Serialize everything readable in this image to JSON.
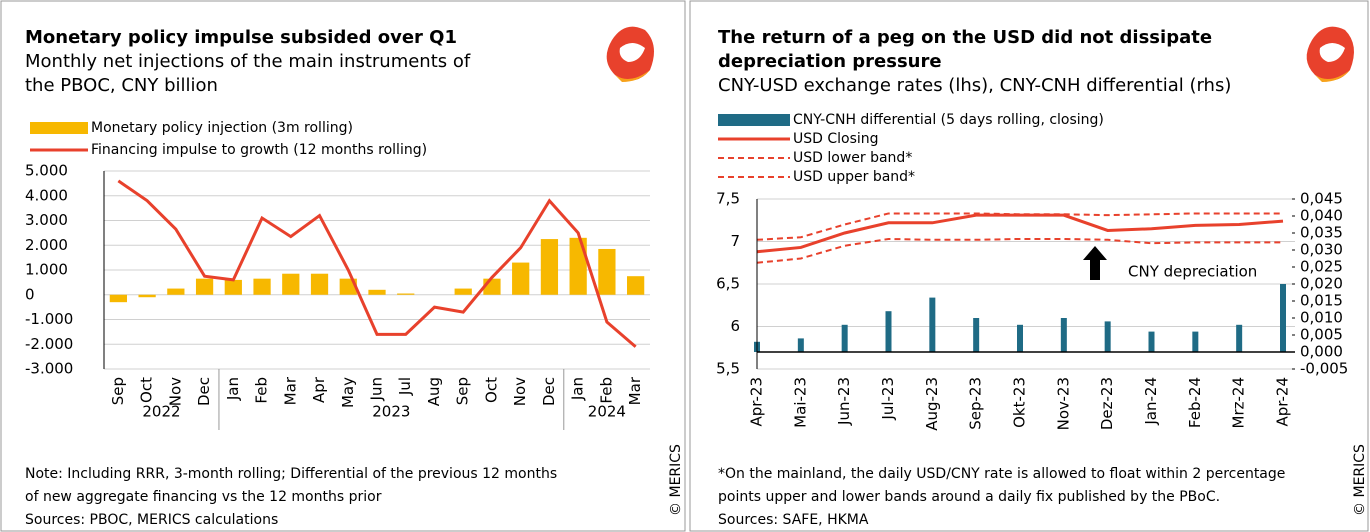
{
  "chart_data": [
    {
      "type": "bar",
      "title": "Monetary policy impulse subsided over Q1",
      "subtitle": [
        "Monthly net injections of the main instruments of",
        "the PBOC, CNY billion"
      ],
      "groups": [
        {
          "label": "2022",
          "categories": [
            "Sep",
            "Oct",
            "Nov",
            "Dec"
          ]
        },
        {
          "label": "2023",
          "categories": [
            "Jan",
            "Feb",
            "Mar",
            "Apr",
            "May",
            "Jun",
            "Jul",
            "Aug",
            "Sep",
            "Oct",
            "Nov",
            "Dec"
          ]
        },
        {
          "label": "2024",
          "categories": [
            "Jan",
            "Feb",
            "Mar"
          ]
        }
      ],
      "series": [
        {
          "name": "Monetary policy injection (3m rolling)",
          "type": "bar",
          "color": "#f7b800",
          "values": [
            -300,
            -100,
            250,
            650,
            600,
            650,
            850,
            850,
            650,
            200,
            50,
            0,
            250,
            650,
            1300,
            2250,
            2300,
            1850,
            750
          ]
        },
        {
          "name": "Financing impulse to growth (12 months rolling)",
          "type": "line",
          "color": "#e8412c",
          "values": [
            4600,
            3800,
            2650,
            750,
            600,
            3100,
            2350,
            3200,
            1000,
            -1600,
            -1600,
            -500,
            -700,
            700,
            1900,
            3800,
            2500,
            -1100,
            -2100
          ]
        }
      ],
      "ylim": [
        -3000,
        5000
      ],
      "yticks": [
        {
          "value": 5000,
          "label": "5.000"
        },
        {
          "value": 4000,
          "label": "4.000"
        },
        {
          "value": 3000,
          "label": "3.000"
        },
        {
          "value": 2000,
          "label": "2.000"
        },
        {
          "value": 1000,
          "label": "1.000"
        },
        0,
        {
          "value": -1000,
          "label": "-1.000"
        },
        {
          "value": -2000,
          "label": "-2.000"
        },
        {
          "value": -3000,
          "label": "-3.000"
        }
      ],
      "grid": true,
      "notes": [
        "Note: Including RRR, 3-month rolling; Differential of the previous 12 months",
        "of new aggregate financing vs the 12 months prior",
        "Sources: PBOC, MERICS calculations"
      ],
      "credit": "© MERICS"
    },
    {
      "type": "line",
      "title": [
        "The return of a peg on the USD did not dissipate",
        "depreciation pressure"
      ],
      "subtitle": "CNY-USD exchange rates (lhs), CNY-CNH differential (rhs)",
      "categories": [
        "Apr-23",
        "Mai-23",
        "Jun-23",
        "Jul-23",
        "Aug-23",
        "Sep-23",
        "Okt-23",
        "Nov-23",
        "Dez-23",
        "Jan-24",
        "Feb-24",
        "Mrz-24",
        "Apr-24"
      ],
      "series": [
        {
          "name": "CNY-CNH differential (5 days rolling, closing)",
          "type": "bar",
          "axis": "y2",
          "color": "#1f6b85",
          "values": [
            0.003,
            0.004,
            0.008,
            0.012,
            0.016,
            0.01,
            0.008,
            0.01,
            0.009,
            0.006,
            0.006,
            0.008,
            0.02
          ]
        },
        {
          "name": "USD Closing",
          "type": "line",
          "color": "#e8412c",
          "values": [
            6.88,
            6.93,
            7.1,
            7.22,
            7.22,
            7.31,
            7.31,
            7.31,
            7.13,
            7.15,
            7.19,
            7.2,
            7.24
          ]
        },
        {
          "name": "USD lower band*",
          "type": "line",
          "dashed": true,
          "color": "#e8412c",
          "values": [
            6.75,
            6.8,
            6.95,
            7.03,
            7.02,
            7.02,
            7.03,
            7.03,
            7.02,
            6.98,
            6.99,
            6.99,
            6.99
          ]
        },
        {
          "name": "USD upper band*",
          "type": "line",
          "dashed": true,
          "color": "#e8412c",
          "values": [
            7.02,
            7.05,
            7.2,
            7.33,
            7.33,
            7.33,
            7.32,
            7.32,
            7.31,
            7.32,
            7.33,
            7.33,
            7.33
          ]
        }
      ],
      "ylim": [
        5.5,
        7.5
      ],
      "yticks": [
        {
          "value": 7.5,
          "label": "7,5"
        },
        7,
        {
          "value": 6.5,
          "label": "6,5"
        },
        6,
        {
          "value": 5.5,
          "label": "5,5"
        }
      ],
      "y2lim": [
        -0.005,
        0.045
      ],
      "y2ticks": [
        {
          "value": 0.045,
          "label": "0,045"
        },
        {
          "value": 0.04,
          "label": "0,040"
        },
        {
          "value": 0.035,
          "label": "0,035"
        },
        {
          "value": 0.03,
          "label": "0,030"
        },
        {
          "value": 0.025,
          "label": "0,025"
        },
        {
          "value": 0.02,
          "label": "0,020"
        },
        {
          "value": 0.015,
          "label": "0,015"
        },
        {
          "value": 0.01,
          "label": "0,010"
        },
        {
          "value": 0.005,
          "label": "0,005"
        },
        {
          "value": 0,
          "label": "0,000"
        },
        {
          "value": -0.005,
          "label": "-0,005"
        }
      ],
      "grid": true,
      "annotation": "CNY depreciation",
      "notes": [
        "*On the mainland, the daily USD/CNY rate is allowed to float within 2 percentage",
        "points upper and lower bands around a daily fix published by the PBoC.",
        "Sources: SAFE, HKMA"
      ],
      "credit": "© MERICS"
    }
  ]
}
